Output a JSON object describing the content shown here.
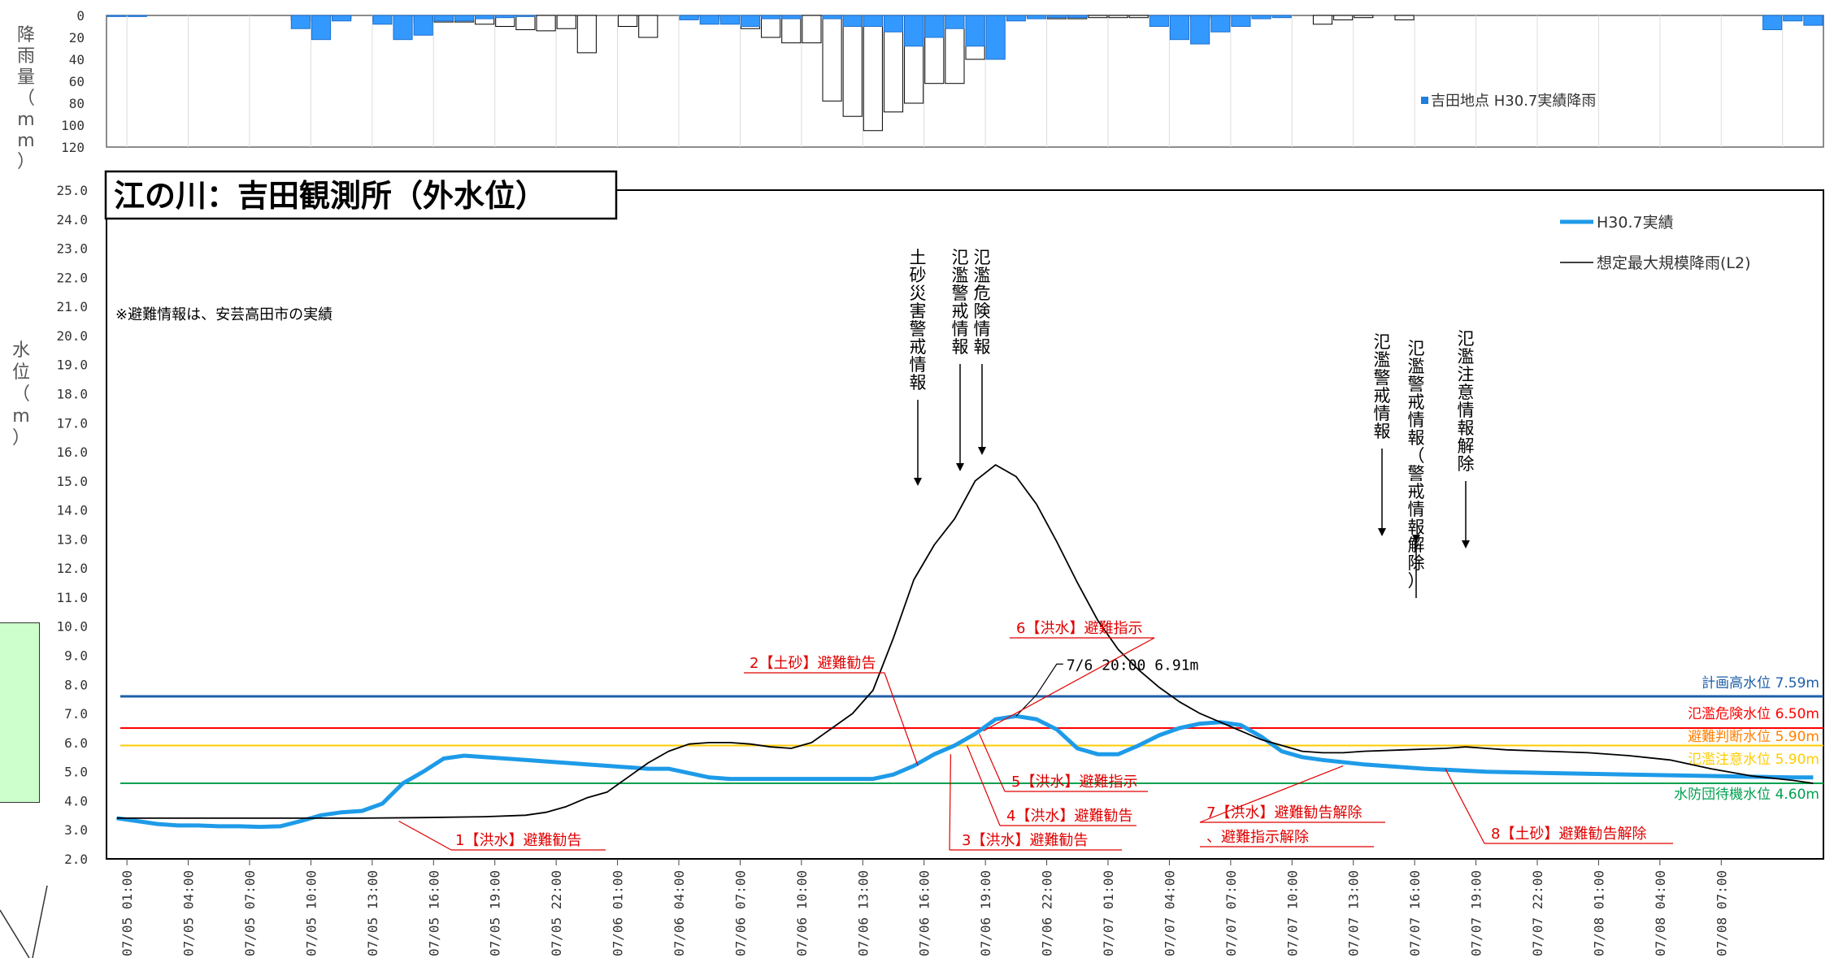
{
  "rain_chart": {
    "ylabel": "降雨量（mm）",
    "yticks": [
      0,
      20,
      40,
      60,
      80,
      100,
      120
    ],
    "legend": "吉田地点 H30.7実績降雨",
    "colors": {
      "actual": "#3399ff",
      "assumed": "#ffffff"
    }
  },
  "chart_data": {
    "type": "line",
    "title": "江の川：吉田観測所（外水位）",
    "ylabel": "水位（m）",
    "ylim": [
      2.0,
      25.0
    ],
    "yticks": [
      "2.0",
      "3.0",
      "4.0",
      "5.0",
      "6.0",
      "7.0",
      "8.0",
      "9.0",
      "10.0",
      "11.0",
      "12.0",
      "13.0",
      "14.0",
      "15.0",
      "16.0",
      "17.0",
      "18.0",
      "19.0",
      "20.0",
      "21.0",
      "22.0",
      "23.0",
      "24.0",
      "25.0"
    ],
    "xticks": [
      "07/05 01:00",
      "07/05 04:00",
      "07/05 07:00",
      "07/05 10:00",
      "07/05 13:00",
      "07/05 16:00",
      "07/05 19:00",
      "07/05 22:00",
      "07/06 01:00",
      "07/06 04:00",
      "07/06 07:00",
      "07/06 10:00",
      "07/06 13:00",
      "07/06 16:00",
      "07/06 19:00",
      "07/06 22:00",
      "07/07 01:00",
      "07/07 04:00",
      "07/07 07:00",
      "07/07 10:00",
      "07/07 13:00",
      "07/07 16:00",
      "07/07 19:00",
      "07/07 22:00",
      "07/08 01:00",
      "07/08 04:00",
      "07/08 07:00"
    ],
    "legend": "top-right",
    "series": [
      {
        "name": "H30.7実績",
        "color": "#1e9be8",
        "points": [
          [
            0,
            3.4
          ],
          [
            1,
            3.3
          ],
          [
            2,
            3.2
          ],
          [
            3,
            3.15
          ],
          [
            4,
            3.15
          ],
          [
            5,
            3.12
          ],
          [
            6,
            3.12
          ],
          [
            7,
            3.1
          ],
          [
            8,
            3.12
          ],
          [
            9,
            3.3
          ],
          [
            10,
            3.5
          ],
          [
            11,
            3.6
          ],
          [
            12,
            3.65
          ],
          [
            13,
            3.9
          ],
          [
            14,
            4.6
          ],
          [
            15,
            5.0
          ],
          [
            16,
            5.45
          ],
          [
            17,
            5.55
          ],
          [
            18,
            5.5
          ],
          [
            19,
            5.45
          ],
          [
            20,
            5.4
          ],
          [
            21,
            5.35
          ],
          [
            22,
            5.3
          ],
          [
            23,
            5.25
          ],
          [
            24,
            5.2
          ],
          [
            25,
            5.15
          ],
          [
            26,
            5.1
          ],
          [
            27,
            5.1
          ],
          [
            28,
            4.95
          ],
          [
            29,
            4.8
          ],
          [
            30,
            4.75
          ],
          [
            31,
            4.75
          ],
          [
            32,
            4.75
          ],
          [
            33,
            4.75
          ],
          [
            34,
            4.75
          ],
          [
            35,
            4.75
          ],
          [
            36,
            4.75
          ],
          [
            37,
            4.75
          ],
          [
            38,
            4.9
          ],
          [
            39,
            5.2
          ],
          [
            40,
            5.6
          ],
          [
            41,
            5.9
          ],
          [
            42,
            6.3
          ],
          [
            43,
            6.8
          ],
          [
            44,
            6.91
          ],
          [
            45,
            6.8
          ],
          [
            46,
            6.45
          ],
          [
            47,
            5.8
          ],
          [
            48,
            5.6
          ],
          [
            49,
            5.6
          ],
          [
            50,
            5.9
          ],
          [
            51,
            6.25
          ],
          [
            52,
            6.5
          ],
          [
            53,
            6.65
          ],
          [
            54,
            6.7
          ],
          [
            55,
            6.6
          ],
          [
            56,
            6.2
          ],
          [
            57,
            5.7
          ],
          [
            58,
            5.5
          ],
          [
            59,
            5.4
          ],
          [
            61,
            5.25
          ],
          [
            64,
            5.1
          ],
          [
            67,
            5.0
          ],
          [
            70,
            4.95
          ],
          [
            74,
            4.9
          ],
          [
            78,
            4.85
          ],
          [
            82,
            4.8
          ],
          [
            83,
            4.8
          ]
        ]
      },
      {
        "name": "想定最大規模降雨(L2)",
        "color": "#000000",
        "points": [
          [
            0,
            3.4
          ],
          [
            3,
            3.4
          ],
          [
            6,
            3.4
          ],
          [
            9,
            3.4
          ],
          [
            12,
            3.4
          ],
          [
            15,
            3.42
          ],
          [
            18,
            3.45
          ],
          [
            20,
            3.5
          ],
          [
            21,
            3.6
          ],
          [
            22,
            3.8
          ],
          [
            23,
            4.1
          ],
          [
            24,
            4.3
          ],
          [
            25,
            4.8
          ],
          [
            26,
            5.3
          ],
          [
            27,
            5.7
          ],
          [
            28,
            5.95
          ],
          [
            29,
            6.0
          ],
          [
            30,
            6.0
          ],
          [
            31,
            5.95
          ],
          [
            32,
            5.85
          ],
          [
            33,
            5.8
          ],
          [
            34,
            6.0
          ],
          [
            35,
            6.5
          ],
          [
            36,
            7.0
          ],
          [
            37,
            7.8
          ],
          [
            38,
            9.6
          ],
          [
            39,
            11.6
          ],
          [
            40,
            12.8
          ],
          [
            41,
            13.7
          ],
          [
            42,
            15.0
          ],
          [
            43,
            15.55
          ],
          [
            44,
            15.15
          ],
          [
            45,
            14.2
          ],
          [
            46,
            12.9
          ],
          [
            47,
            11.5
          ],
          [
            48,
            10.2
          ],
          [
            49,
            9.2
          ],
          [
            50,
            8.5
          ],
          [
            51,
            7.9
          ],
          [
            52,
            7.4
          ],
          [
            53,
            7.0
          ],
          [
            54,
            6.7
          ],
          [
            55,
            6.4
          ],
          [
            56,
            6.1
          ],
          [
            57,
            5.9
          ],
          [
            58,
            5.7
          ],
          [
            59,
            5.65
          ],
          [
            60,
            5.65
          ],
          [
            61,
            5.7
          ],
          [
            63,
            5.75
          ],
          [
            65,
            5.8
          ],
          [
            66,
            5.85
          ],
          [
            67,
            5.8
          ],
          [
            68,
            5.75
          ],
          [
            70,
            5.7
          ],
          [
            72,
            5.65
          ],
          [
            74,
            5.55
          ],
          [
            76,
            5.4
          ],
          [
            78,
            5.1
          ],
          [
            80,
            4.85
          ],
          [
            82,
            4.7
          ],
          [
            83,
            4.6
          ]
        ]
      }
    ],
    "thresholds": [
      {
        "label": "計画高水位 7.59m",
        "value": 7.59,
        "color": "#1f5fa8"
      },
      {
        "label": "氾濫危険水位 6.50m",
        "value": 6.5,
        "color": "#ff0000"
      },
      {
        "label": "避難判断水位 5.90m",
        "value": 5.9,
        "color": "#ff8000"
      },
      {
        "label": "氾濫注意水位 5.90m",
        "value": 5.9,
        "color": "#ffcc00"
      },
      {
        "label": "水防団待機水位 4.60m",
        "value": 4.6,
        "color": "#00a050"
      }
    ],
    "peak_annotation": "7/6 20:00 6.91m",
    "peak": {
      "x": 44,
      "y": 6.91
    },
    "note": "※避難情報は、安芸高田市の実績",
    "evacuation_labels": [
      {
        "label": "1【洪水】避難勧告",
        "at": 13.8
      },
      {
        "label": "2【土砂】避難勧告",
        "at": 39.2
      },
      {
        "label": "3【洪水】避難勧告",
        "at": 40.8
      },
      {
        "label": "4【洪水】避難勧告",
        "at": 41.6
      },
      {
        "label": "5【洪水】避難指示",
        "at": 42.2
      },
      {
        "label": "6【洪水】避難指示",
        "at": 42.4
      },
      {
        "label": "7【洪水】避難勧告解除",
        "at": 60.0
      },
      {
        "label": "、避難指示解除",
        "at": 60.0
      },
      {
        "label": "8【土砂】避難勧告解除",
        "at": 65.0
      }
    ],
    "info_labels": [
      {
        "label": "土砂災害警戒情報",
        "at": 38.5
      },
      {
        "label": "氾濫警戒情報",
        "at": 40.5
      },
      {
        "label": "氾濫危険情報",
        "at": 41.5
      },
      {
        "label": "氾濫警戒情報",
        "at": 59.5
      },
      {
        "label": "氾濫警戒情報（警戒情報解除）",
        "at": 61.0
      },
      {
        "label": "氾濫注意情報解除",
        "at": 63.0
      }
    ]
  },
  "rain_data": {
    "actual": [
      [
        0,
        1
      ],
      [
        1,
        1
      ],
      [
        2,
        0
      ],
      [
        3,
        0
      ],
      [
        4,
        0
      ],
      [
        5,
        0
      ],
      [
        6,
        0
      ],
      [
        7,
        0
      ],
      [
        8,
        0
      ],
      [
        9,
        12
      ],
      [
        10,
        22
      ],
      [
        11,
        5
      ],
      [
        12,
        0
      ],
      [
        13,
        8
      ],
      [
        14,
        22
      ],
      [
        15,
        18
      ],
      [
        16,
        5
      ],
      [
        17,
        5
      ],
      [
        18,
        3
      ],
      [
        19,
        2
      ],
      [
        20,
        1
      ],
      [
        21,
        0
      ],
      [
        22,
        0
      ],
      [
        23,
        0
      ],
      [
        24,
        0
      ],
      [
        25,
        0
      ],
      [
        26,
        0
      ],
      [
        27,
        0
      ],
      [
        28,
        4
      ],
      [
        29,
        8
      ],
      [
        30,
        8
      ],
      [
        31,
        10
      ],
      [
        32,
        3
      ],
      [
        33,
        3
      ],
      [
        34,
        0
      ],
      [
        35,
        3
      ],
      [
        36,
        10
      ],
      [
        37,
        10
      ],
      [
        38,
        15
      ],
      [
        39,
        28
      ],
      [
        40,
        20
      ],
      [
        41,
        12
      ],
      [
        42,
        28
      ],
      [
        43,
        40
      ],
      [
        44,
        5
      ],
      [
        45,
        3
      ],
      [
        46,
        2
      ],
      [
        47,
        2
      ],
      [
        48,
        0
      ],
      [
        49,
        0
      ],
      [
        50,
        0
      ],
      [
        51,
        10
      ],
      [
        52,
        22
      ],
      [
        53,
        26
      ],
      [
        54,
        15
      ],
      [
        55,
        10
      ],
      [
        56,
        3
      ],
      [
        57,
        2
      ],
      [
        58,
        0
      ],
      [
        59,
        0
      ],
      [
        60,
        0
      ],
      [
        61,
        0
      ],
      [
        62,
        0
      ],
      [
        63,
        0
      ],
      [
        64,
        0
      ],
      [
        65,
        0
      ],
      [
        66,
        0
      ],
      [
        67,
        0
      ],
      [
        68,
        0
      ],
      [
        69,
        0
      ],
      [
        70,
        0
      ],
      [
        71,
        0
      ],
      [
        72,
        0
      ],
      [
        73,
        0
      ],
      [
        74,
        0
      ],
      [
        75,
        0
      ],
      [
        76,
        0
      ],
      [
        77,
        0
      ],
      [
        78,
        0
      ],
      [
        79,
        0
      ],
      [
        80,
        0
      ],
      [
        81,
        13
      ],
      [
        82,
        5
      ],
      [
        83,
        9
      ]
    ],
    "assumed": [
      [
        9,
        4
      ],
      [
        10,
        6
      ],
      [
        11,
        3
      ],
      [
        13,
        5
      ],
      [
        15,
        6
      ],
      [
        16,
        6
      ],
      [
        17,
        6
      ],
      [
        18,
        8
      ],
      [
        19,
        10
      ],
      [
        20,
        13
      ],
      [
        21,
        14
      ],
      [
        22,
        12
      ],
      [
        23,
        34
      ],
      [
        25,
        10
      ],
      [
        26,
        20
      ],
      [
        28,
        2
      ],
      [
        29,
        3
      ],
      [
        30,
        5
      ],
      [
        31,
        12
      ],
      [
        32,
        20
      ],
      [
        33,
        25
      ],
      [
        34,
        25
      ],
      [
        35,
        78
      ],
      [
        36,
        92
      ],
      [
        37,
        105
      ],
      [
        38,
        88
      ],
      [
        39,
        80
      ],
      [
        40,
        62
      ],
      [
        41,
        62
      ],
      [
        42,
        40
      ],
      [
        45,
        2
      ],
      [
        46,
        3
      ],
      [
        47,
        3
      ],
      [
        48,
        2
      ],
      [
        49,
        2
      ],
      [
        50,
        2
      ],
      [
        53,
        3
      ],
      [
        54,
        2
      ],
      [
        59,
        8
      ],
      [
        60,
        4
      ],
      [
        61,
        2
      ],
      [
        63,
        4
      ]
    ]
  }
}
